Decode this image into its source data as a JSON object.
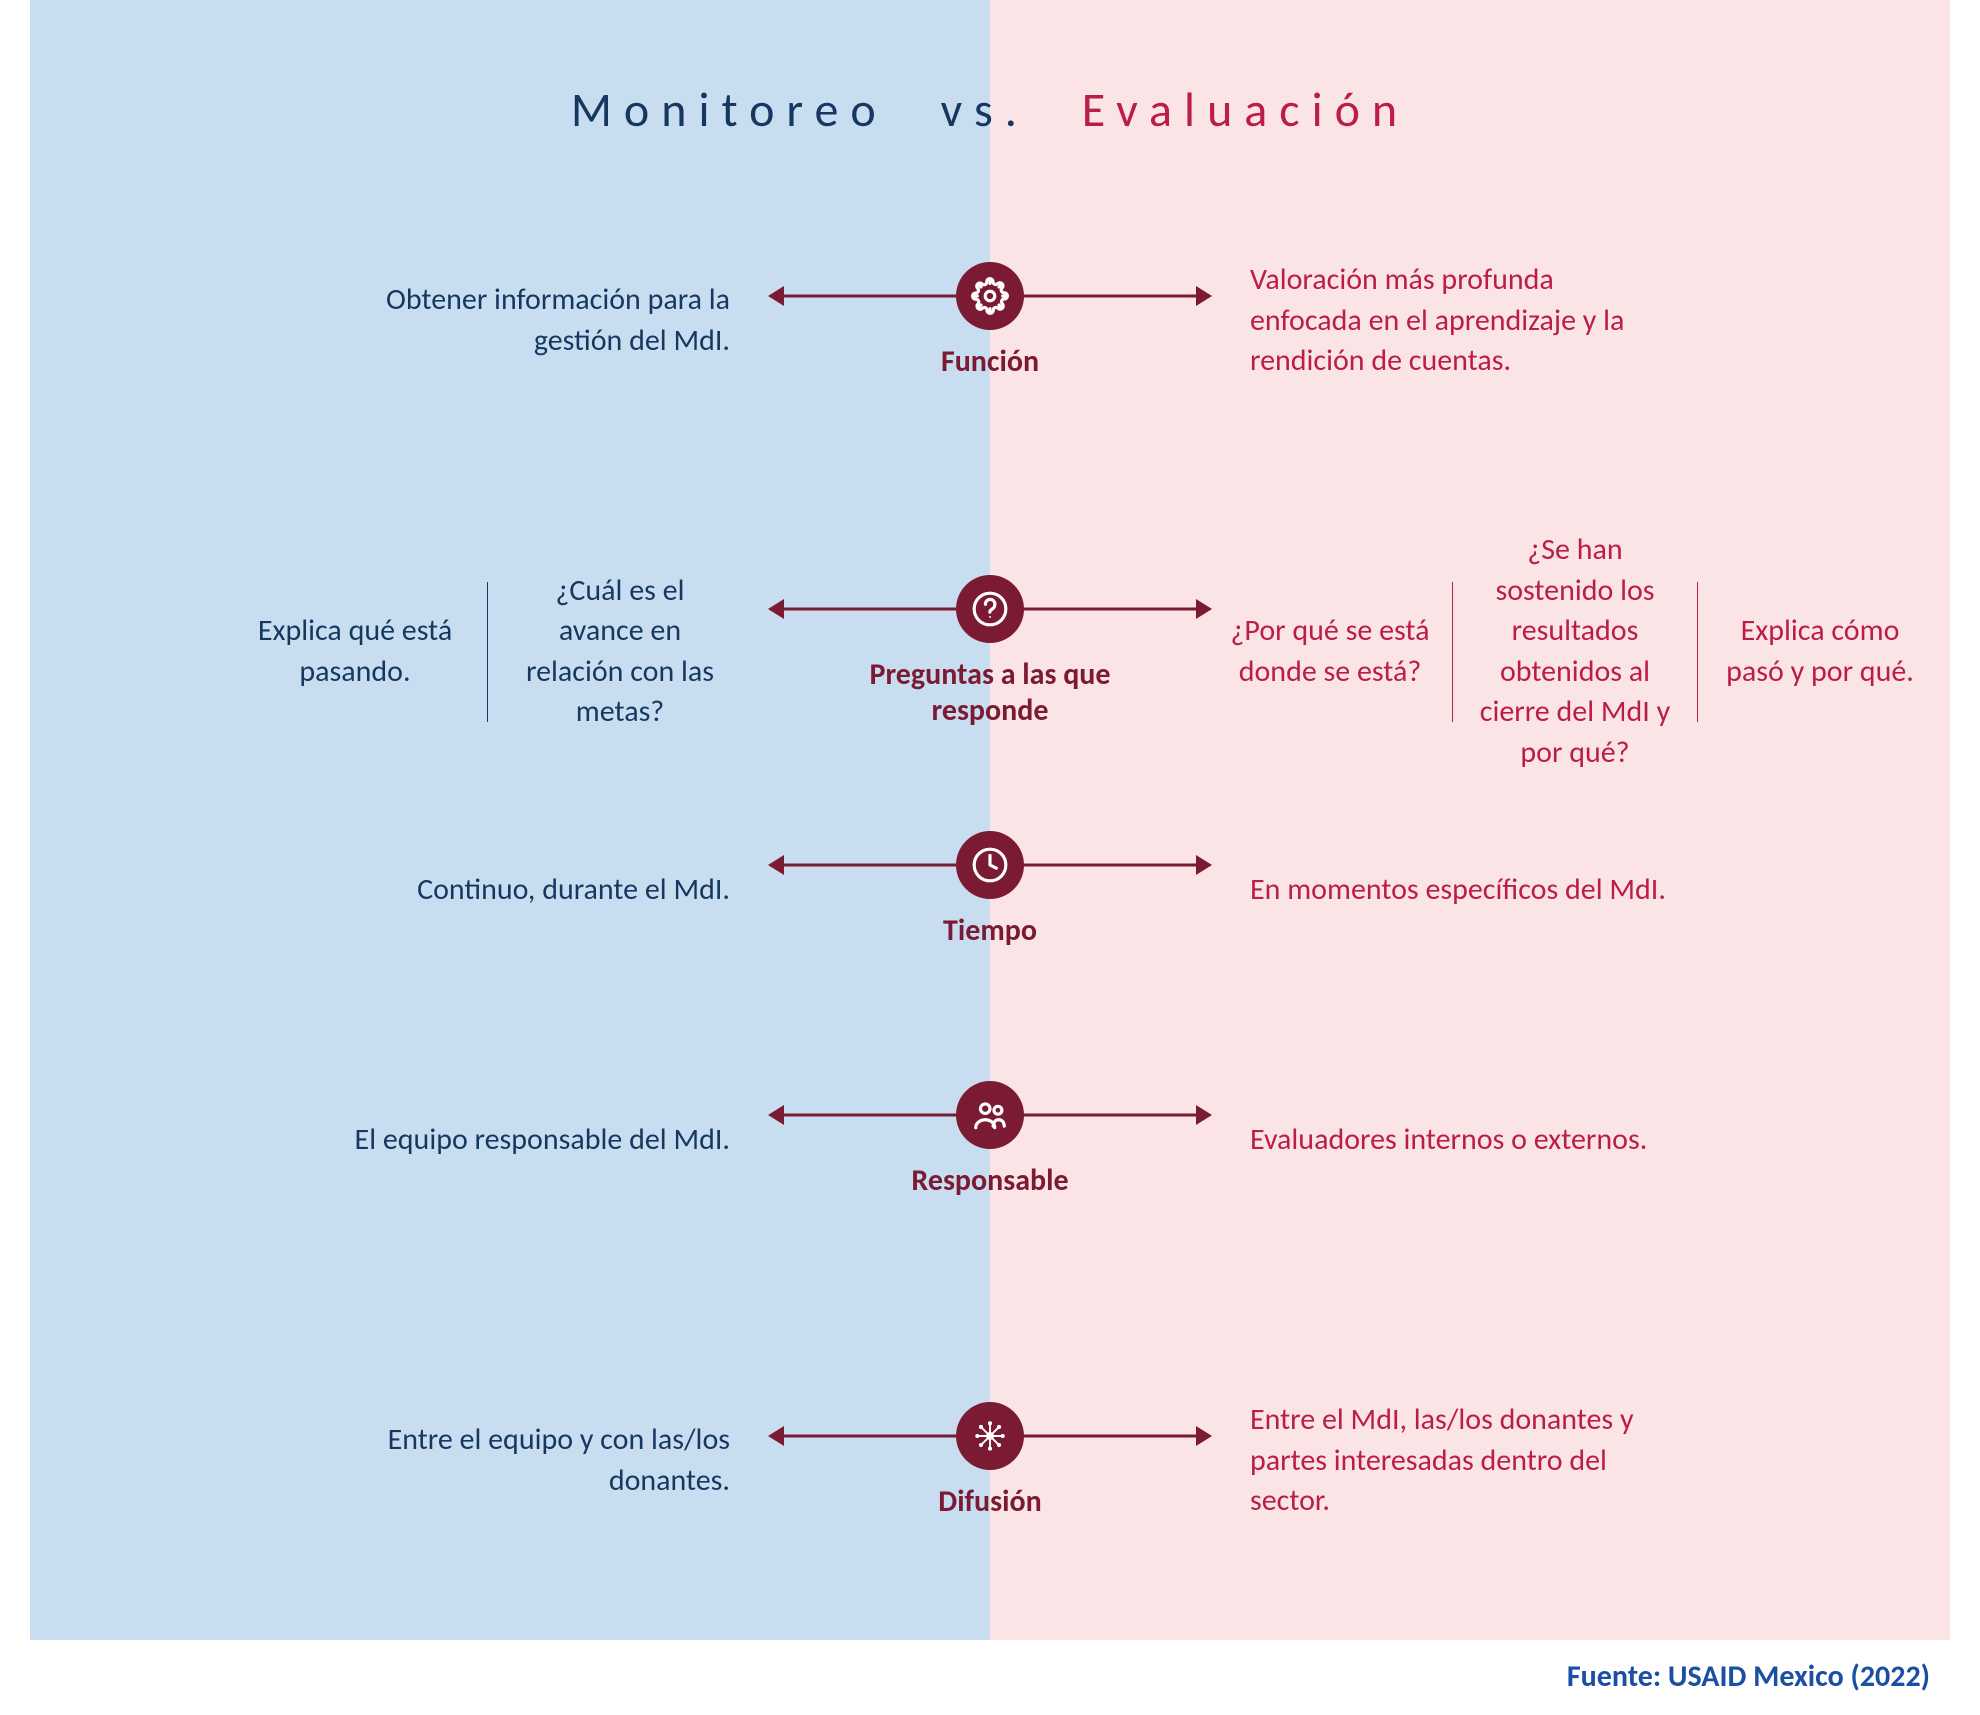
{
  "colors": {
    "bg_left": "#c8def0",
    "bg_right": "#fbe4e6",
    "text_left": "#16375f",
    "text_right": "#bb1d45",
    "dark_red": "#7a1a33",
    "icon_fg": "#ffffff",
    "divider": "#16375f",
    "divider_right": "#bb1d45",
    "source_color": "#1a4fa3"
  },
  "layout": {
    "row_tops": [
      260,
      530,
      870,
      1120,
      1400
    ],
    "diagram_width": 1920,
    "diagram_height": 1640
  },
  "title": {
    "left": "Monitoreo",
    "vs": "vs.",
    "right": "Evaluación"
  },
  "rows": [
    {
      "category": "Función",
      "icon": "gear",
      "left": {
        "type": "single",
        "text": "Obtener información para la gestión del MdI."
      },
      "right": {
        "type": "single",
        "text": "Valoración más profunda enfocada en el aprendizaje y la rendición de cuentas."
      }
    },
    {
      "category": "Preguntas a las que responde",
      "icon": "question",
      "left": {
        "type": "multi",
        "items": [
          "Explica qué está pasando.",
          "¿Cuál es el avance en relación con las metas?"
        ]
      },
      "right": {
        "type": "multi",
        "items": [
          "¿Por qué se está donde se está?",
          "¿Se han sostenido los resultados obtenidos al cierre del MdI y por qué?",
          "Explica cómo pasó y por qué."
        ]
      }
    },
    {
      "category": "Tiempo",
      "icon": "clock",
      "left": {
        "type": "single",
        "text": "Continuo, durante el MdI."
      },
      "right": {
        "type": "single",
        "text": "En momentos específicos del MdI."
      }
    },
    {
      "category": "Responsable",
      "icon": "people",
      "left": {
        "type": "single",
        "text": "El equipo responsable del MdI."
      },
      "right": {
        "type": "single",
        "text": "Evaluadores internos o externos."
      }
    },
    {
      "category": "Difusión",
      "icon": "network",
      "left": {
        "type": "single",
        "text": "Entre el equipo y con las/los donantes."
      },
      "right": {
        "type": "single",
        "text": "Entre el MdI, las/los donantes y partes interesadas dentro del sector."
      }
    }
  ],
  "source": "Fuente: USAID Mexico (2022)"
}
